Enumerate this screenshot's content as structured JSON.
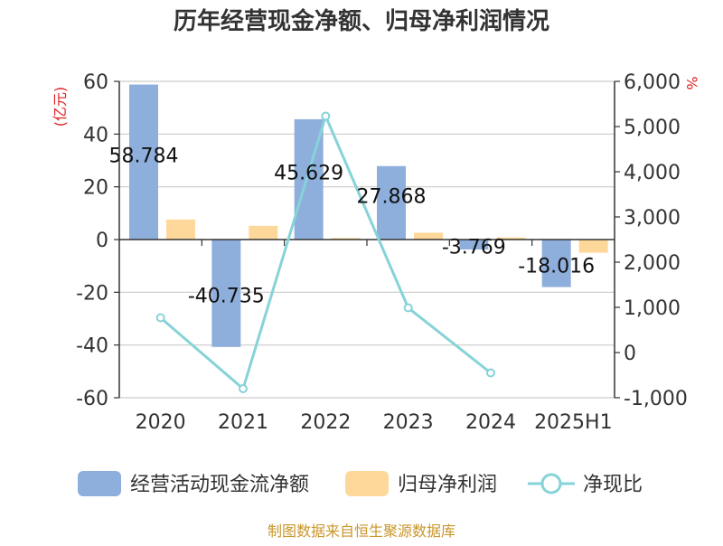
{
  "title": "历年经营现金净额、归母净利润情况",
  "source": "制图数据来自恒生聚源数据库",
  "colors": {
    "cash_flow": "#8eaedc",
    "net_profit": "#fdd89a",
    "ratio": "#86d3d8",
    "axis": "#333333",
    "grid": "#cccccc",
    "unit": "#e02020",
    "source": "#c9962a"
  },
  "chart_data": {
    "type": "bar",
    "title": "历年经营现金净额、归母净利润情况",
    "categories": [
      "2020",
      "2021",
      "2022",
      "2023",
      "2024",
      "2025H1"
    ],
    "left_axis": {
      "unit": "(亿元)",
      "ylim": [
        -60,
        60
      ],
      "ticks": [
        60,
        40,
        20,
        0,
        -20,
        -40,
        -60
      ],
      "tick_labels": [
        "60",
        "40",
        "20",
        "0",
        "-20",
        "-40",
        "-60"
      ]
    },
    "right_axis": {
      "unit": "%",
      "ylim": [
        -1000,
        6000
      ],
      "ticks": [
        6000,
        5000,
        4000,
        3000,
        2000,
        1000,
        0,
        -1000
      ],
      "tick_labels": [
        "6,000",
        "5,000",
        "4,000",
        "3,000",
        "2,000",
        "1,000",
        "0",
        "-1,000"
      ]
    },
    "grid": true,
    "legend_position": "bottom",
    "series": [
      {
        "name": "经营活动现金流净额",
        "type": "bar",
        "axis": "left",
        "values": [
          58.784,
          -40.735,
          45.629,
          27.868,
          -3.769,
          -18.016
        ],
        "labels": [
          "58.784",
          "-40.735",
          "45.629",
          "27.868",
          "-3.769",
          "-18.016"
        ]
      },
      {
        "name": "归母净利润",
        "type": "bar",
        "axis": "left",
        "values": [
          7.6,
          5.2,
          0.6,
          2.6,
          0.8,
          -5.0
        ]
      },
      {
        "name": "净现比",
        "type": "line",
        "axis": "right",
        "values": [
          770,
          -800,
          5230,
          990,
          -450,
          null
        ]
      }
    ]
  }
}
